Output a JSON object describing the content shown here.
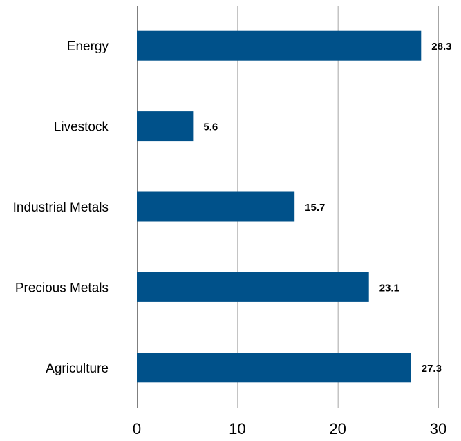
{
  "chart_data": {
    "type": "bar",
    "orientation": "horizontal",
    "categories": [
      "Energy",
      "Livestock",
      "Industrial Metals",
      "Precious Metals",
      "Agriculture"
    ],
    "values": [
      28.3,
      5.6,
      15.7,
      23.1,
      27.3
    ],
    "value_labels": [
      "28.3",
      "5.6",
      "15.7",
      "23.1",
      "27.3"
    ],
    "xlim": [
      0,
      30
    ],
    "ticks": [
      0,
      10,
      20,
      30
    ],
    "tick_labels": [
      "0",
      "10",
      "20",
      "30"
    ],
    "title": "",
    "xlabel": "",
    "ylabel": "",
    "grid": "vertical",
    "legend": "none",
    "bar_color": "#00518a"
  }
}
